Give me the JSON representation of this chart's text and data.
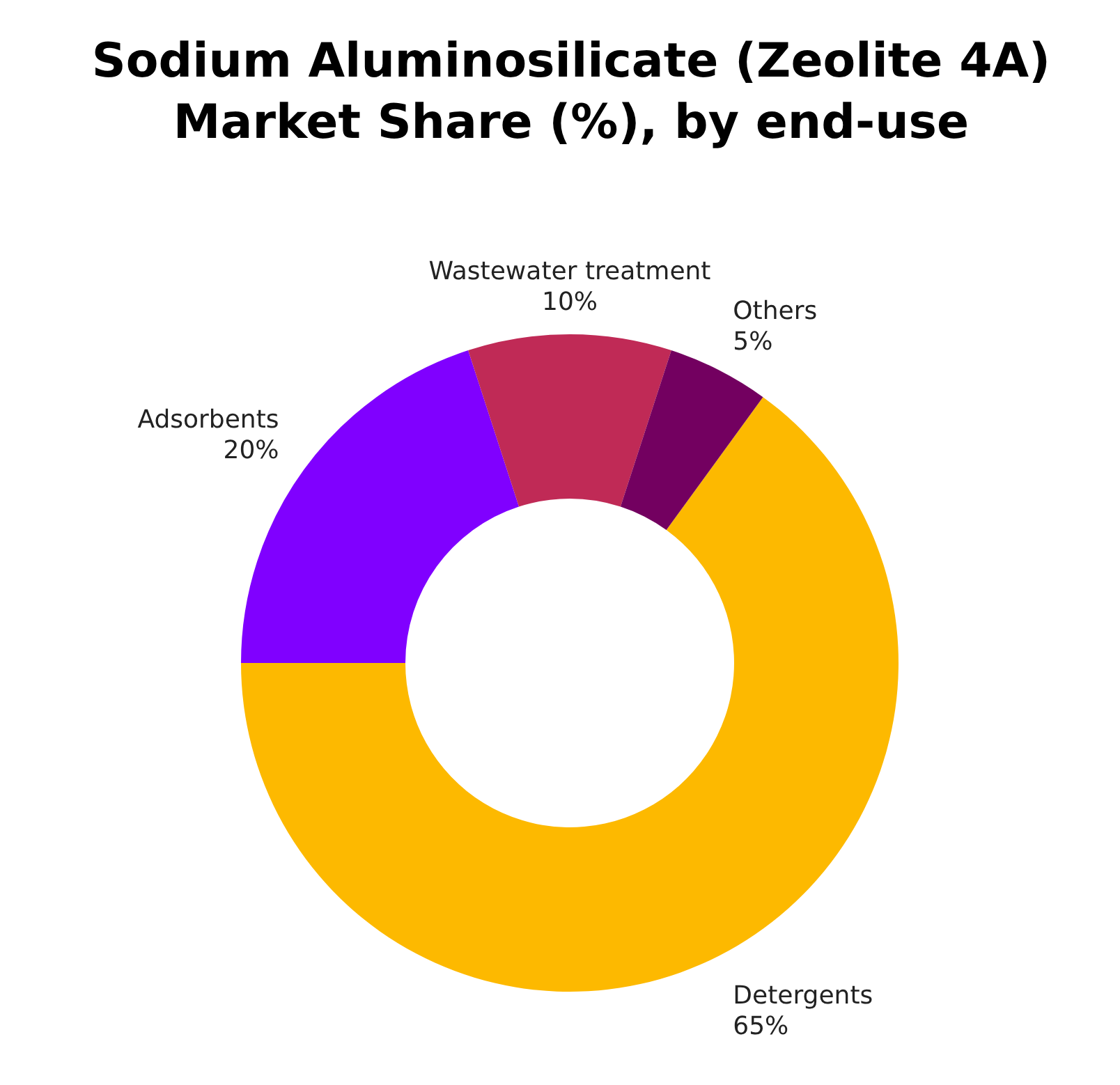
{
  "chart_data": {
    "type": "donut",
    "title": "Sodium Aluminosilicate (Zeolite 4A) Market Share (%), by end-use",
    "categories": [
      "Detergents",
      "Adsorbents",
      "Wastewater treatment",
      "Others"
    ],
    "values": [
      65,
      20,
      10,
      5
    ],
    "value_labels": [
      "65%",
      "20%",
      "10%",
      "5%"
    ],
    "colors": [
      "#fdb900",
      "#8000ff",
      "#c02a56",
      "#730060"
    ],
    "legend": false
  }
}
